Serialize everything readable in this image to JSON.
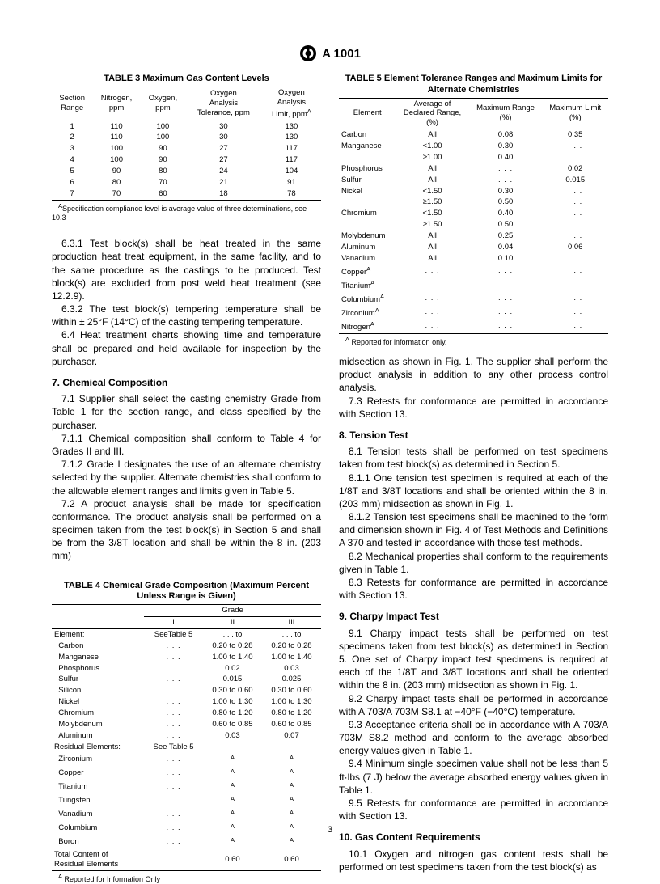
{
  "doc_header": "A 1001",
  "page_number": "3",
  "table3": {
    "caption": "TABLE 3  Maximum Gas Content Levels",
    "headers": [
      "Section\nRange",
      "Nitrogen,\nppm",
      "Oxygen,\nppm",
      "Oxygen\nAnalysis\nTolerance, ppm",
      "Oxygen\nAnalysis\nLimit, ppm"
    ],
    "header_sup": "A",
    "rows": [
      [
        "1",
        "110",
        "100",
        "30",
        "130"
      ],
      [
        "2",
        "110",
        "100",
        "30",
        "130"
      ],
      [
        "3",
        "100",
        "90",
        "27",
        "117"
      ],
      [
        "4",
        "100",
        "90",
        "27",
        "117"
      ],
      [
        "5",
        "90",
        "80",
        "24",
        "104"
      ],
      [
        "6",
        "80",
        "70",
        "21",
        "91"
      ],
      [
        "7",
        "70",
        "60",
        "18",
        "78"
      ]
    ],
    "footnote_sup": "A",
    "footnote": "Specification compliance level is average value of three determinations, see 10.3"
  },
  "col1_body": {
    "p631": "6.3.1 Test block(s) shall be heat treated in the same production heat treat equipment, in the same facility, and to the same procedure as the castings to be produced. Test block(s) are excluded from post weld heat treatment (see 12.2.9).",
    "p632": "6.3.2 The test block(s) tempering temperature shall be within ± 25°F (14°C) of the casting tempering temperature.",
    "p64": "6.4 Heat treatment charts showing time and temperature shall be prepared and held available for inspection by the purchaser.",
    "h7": "7. Chemical Composition",
    "p71": "7.1 Supplier shall select the casting chemistry Grade from Table 1 for the section range, and class specified by the purchaser.",
    "p711": "7.1.1 Chemical composition shall conform to Table 4 for Grades II and III.",
    "p712": "7.1.2 Grade I designates the use of an alternate chemistry selected by the supplier. Alternate chemistries shall conform to the allowable element ranges and limits given in Table 5.",
    "p72": "7.2 A product analysis shall be made for specification conformance. The product analysis shall be performed on a specimen taken from the test block(s) in Section 5 and shall be from the 3/8T location and shall be within the 8 in. (203 mm)"
  },
  "table4": {
    "caption": "TABLE 4  Chemical Grade Composition (Maximum Percent Unless Range is Given)",
    "grade_header": "Grade",
    "grade_cols": [
      "I",
      "II",
      "III"
    ],
    "element_label": "Element:",
    "see5": "SeeTable 5",
    "el_rows": [
      [
        "Carbon",
        ". . .",
        "0.20 to 0.28",
        "0.20 to 0.28"
      ],
      [
        "Manganese",
        ". . .",
        "1.00 to 1.40",
        "1.00 to 1.40"
      ],
      [
        "Phosphorus",
        ". . .",
        "0.02",
        "0.03"
      ],
      [
        "Sulfur",
        ". . .",
        "0.015",
        "0.025"
      ],
      [
        "Silicon",
        ". . .",
        "0.30 to 0.60",
        "0.30 to 0.60"
      ],
      [
        "Nickel",
        ". . .",
        "1.00 to 1.30",
        "1.00 to 1.30"
      ],
      [
        "Chromium",
        ". . .",
        "0.80 to 1.20",
        "0.80 to 1.20"
      ],
      [
        "Molybdenum",
        ". . .",
        "0.60 to 0.85",
        "0.60 to 0.85"
      ],
      [
        "Aluminum",
        ". . .",
        "0.03",
        "0.07"
      ]
    ],
    "resid_label": "Residual Elements:",
    "resid_see5": "See Table 5",
    "resid_rows": [
      [
        "Zirconium",
        ". . .",
        "A",
        "A"
      ],
      [
        "Copper",
        ". . .",
        "A",
        "A"
      ],
      [
        "Titanium",
        ". . .",
        "A",
        "A"
      ],
      [
        "Tungsten",
        ". . .",
        "A",
        "A"
      ],
      [
        "Vanadium",
        ". . .",
        "A",
        "A"
      ],
      [
        "Columbium",
        ". . .",
        "A",
        "A"
      ],
      [
        "Boron",
        ". . .",
        "A",
        "A"
      ]
    ],
    "total_row": [
      "Total Content of\nResidual Elements",
      ". . .",
      "0.60",
      "0.60"
    ],
    "footnote_sup": "A",
    "footnote": " Reported for Information Only"
  },
  "table5": {
    "caption": "TABLE 5  Element Tolerance Ranges and Maximum Limits for Alternate Chemistries",
    "headers": [
      "Element",
      "Average of\nDeclared Range,\n(%)",
      "Maximum Range\n(%)",
      "Maximum Limit\n(%)"
    ],
    "rows": [
      [
        "Carbon",
        "All",
        "0.08",
        "0.35"
      ],
      [
        "Manganese",
        "<1.00",
        "0.30",
        ". . ."
      ],
      [
        "",
        "≥1.00",
        "0.40",
        ". . ."
      ],
      [
        "Phosphorus",
        "All",
        ". . .",
        "0.02"
      ],
      [
        "Sulfur",
        "All",
        ". . .",
        "0.015"
      ],
      [
        "Nickel",
        "<1.50",
        "0.30",
        ". . ."
      ],
      [
        "",
        "≥1.50",
        "0.50",
        ". . ."
      ],
      [
        "Chromium",
        "<1.50",
        "0.40",
        ". . ."
      ],
      [
        "",
        "≥1.50",
        "0.50",
        ". . ."
      ],
      [
        "Molybdenum",
        "All",
        "0.25",
        ". . ."
      ],
      [
        "Aluminum",
        "All",
        "0.04",
        "0.06"
      ],
      [
        "Vanadium",
        "All",
        "0.10",
        ". . ."
      ]
    ],
    "rows_sup": [
      "Copper",
      "Titanium",
      "Columbium",
      "Zirconium",
      "Nitrogen"
    ],
    "ellipsis": ". . .",
    "footnote_sup": "A",
    "footnote": " Reported for information only."
  },
  "col2_body": {
    "pmid": "midsection as shown in Fig. 1. The supplier shall perform the product analysis in addition to any other process control analysis.",
    "p73": "7.3 Retests for conformance are permitted in accordance with Section 13.",
    "h8": "8. Tension Test",
    "p81": "8.1 Tension tests shall be performed on test specimens taken from test block(s) as determined in Section 5.",
    "p811": "8.1.1 One tension test specimen is required at each of the 1/8T and 3/8T locations and shall be oriented within the 8 in. (203 mm) midsection as shown in Fig. 1.",
    "p812": "8.1.2 Tension test specimens shall be machined to the form and dimension shown in Fig. 4 of Test Methods and Definitions A 370 and tested in accordance with those test methods.",
    "p82": "8.2 Mechanical properties shall conform to the requirements given in Table 1.",
    "p83": "8.3 Retests for conformance are permitted in accordance with Section 13.",
    "h9": "9. Charpy Impact Test",
    "p91": "9.1 Charpy impact tests shall be performed on test specimens taken from test block(s) as determined in Section 5. One set of Charpy impact test specimens is required at each of the 1/8T and 3/8T locations and shall be oriented within the 8 in. (203 mm) midsection as shown in Fig. 1.",
    "p92": "9.2 Charpy impact tests shall be performed in accordance with A 703/A 703M S8.1 at −40°F (−40°C) temperature.",
    "p93": "9.3 Acceptance criteria shall be in accordance with A 703/A 703M S8.2 method and conform to the average absorbed energy values given in Table 1.",
    "p94": "9.4 Minimum single specimen value shall not be less than 5 ft·lbs (7 J) below the average absorbed energy values given in Table 1.",
    "p95": "9.5 Retests for conformance are permitted in accordance with Section 13.",
    "h10": "10. Gas Content Requirements",
    "p101": "10.1 Oxygen and nitrogen gas content tests shall be performed on test specimens taken from the test block(s) as"
  }
}
